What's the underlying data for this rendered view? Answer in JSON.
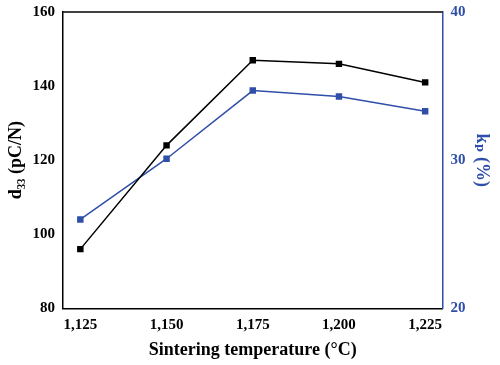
{
  "chart_data": {
    "type": "line",
    "x_label": "Sintering temperature (°C)",
    "y_label": "d₃₃ (pC/N)",
    "y2_label": "kₚ (%)",
    "x": [
      1125,
      1150,
      1175,
      1200,
      1225
    ],
    "series": [
      {
        "color": "#000000",
        "marker": "square",
        "values": [
          96,
          124,
          147,
          146,
          141
        ]
      },
      {
        "color": "#2f4fa8",
        "marker": "square",
        "axis": "y2",
        "values": [
          26,
          30.1,
          34.7,
          34.3,
          33.3
        ]
      }
    ],
    "xlim": [
      1120,
      1230
    ],
    "xticks": [
      1125,
      1150,
      1175,
      1200,
      1225
    ],
    "ylim": [
      80,
      160
    ],
    "yticks": [
      80,
      100,
      120,
      140,
      160
    ],
    "y2lim": [
      20,
      40
    ],
    "y2ticks": [
      20,
      30,
      40
    ],
    "grid": false
  }
}
